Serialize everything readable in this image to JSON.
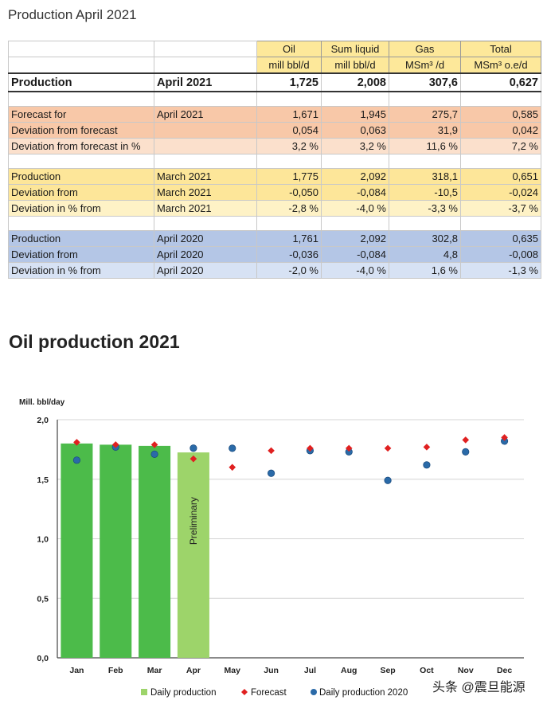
{
  "page_title": "Production April 2021",
  "table": {
    "headers": [
      {
        "name": "Oil",
        "unit": "mill bbl/d"
      },
      {
        "name": "Sum liquid",
        "unit": "mill bbl/d"
      },
      {
        "name": "Gas",
        "unit": "MSm³ /d"
      },
      {
        "name": "Total",
        "unit": "MSm³ o.e/d"
      }
    ],
    "rows": [
      {
        "label": "Production",
        "period": "April 2021",
        "values": [
          "1,725",
          "2,008",
          "307,6",
          "0,627"
        ]
      },
      {
        "label": "Forecast for",
        "period": "April 2021",
        "values": [
          "1,671",
          "1,945",
          "275,7",
          "0,585"
        ]
      },
      {
        "label": "Deviation from forecast",
        "period": "",
        "values": [
          "0,054",
          "0,063",
          "31,9",
          "0,042"
        ]
      },
      {
        "label": "Deviation from forecast in %",
        "period": "",
        "values": [
          "3,2 %",
          "3,2 %",
          "11,6 %",
          "7,2 %"
        ]
      },
      {
        "label": "Production",
        "period": "March 2021",
        "values": [
          "1,775",
          "2,092",
          "318,1",
          "0,651"
        ]
      },
      {
        "label": "Deviation from",
        "period": "March 2021",
        "values": [
          "-0,050",
          "-0,084",
          "-10,5",
          "-0,024"
        ]
      },
      {
        "label": "Deviation  in % from",
        "period": "March 2021",
        "values": [
          "-2,8 %",
          "-4,0 %",
          "-3,3 %",
          "-3,7 %"
        ]
      },
      {
        "label": "Production",
        "period": "April 2020",
        "values": [
          "1,761",
          "2,092",
          "302,8",
          "0,635"
        ]
      },
      {
        "label": "Deviation from",
        "period": "April 2020",
        "values": [
          "-0,036",
          "-0,084",
          "4,8",
          "-0,008"
        ]
      },
      {
        "label": "Deviation  in % from",
        "period": "April 2020",
        "values": [
          "-2,0 %",
          "-4,0 %",
          "1,6 %",
          "-1,3 %"
        ]
      }
    ]
  },
  "section_heading": "Oil production 2021",
  "chart_data": {
    "type": "bar",
    "title": "Oil production 2021",
    "ylabel": "Mill. bbl/day",
    "xlabel": "",
    "ylim": [
      0,
      2
    ],
    "yticks": [
      "0,0",
      "0,5",
      "1,0",
      "1,5",
      "2,0"
    ],
    "ytick_values": [
      0,
      0.5,
      1.0,
      1.5,
      2.0
    ],
    "categories": [
      "Jan",
      "Feb",
      "Mar",
      "Apr",
      "May",
      "Jun",
      "Jul",
      "Aug",
      "Sep",
      "Oct",
      "Nov",
      "Dec"
    ],
    "series": [
      {
        "name": "Daily production",
        "kind": "bar",
        "color": "#4cbb4a",
        "preliminary_color": "#9dd46a",
        "values": [
          1.8,
          1.79,
          1.78,
          1.725,
          null,
          null,
          null,
          null,
          null,
          null,
          null,
          null
        ]
      },
      {
        "name": "Forecast",
        "kind": "marker-diamond",
        "color": "#e02020",
        "values": [
          1.81,
          1.79,
          1.79,
          1.671,
          1.6,
          1.74,
          1.76,
          1.76,
          1.76,
          1.77,
          1.83,
          1.85
        ]
      },
      {
        "name": "Daily production 2020",
        "kind": "marker-circle",
        "color": "#2a6aa8",
        "values": [
          1.66,
          1.77,
          1.71,
          1.761,
          1.76,
          1.55,
          1.74,
          1.73,
          1.49,
          1.62,
          1.73,
          1.82
        ]
      }
    ],
    "annotations": [
      {
        "category": "Apr",
        "text": "Preliminary"
      }
    ]
  },
  "watermark": "头条 @震旦能源"
}
